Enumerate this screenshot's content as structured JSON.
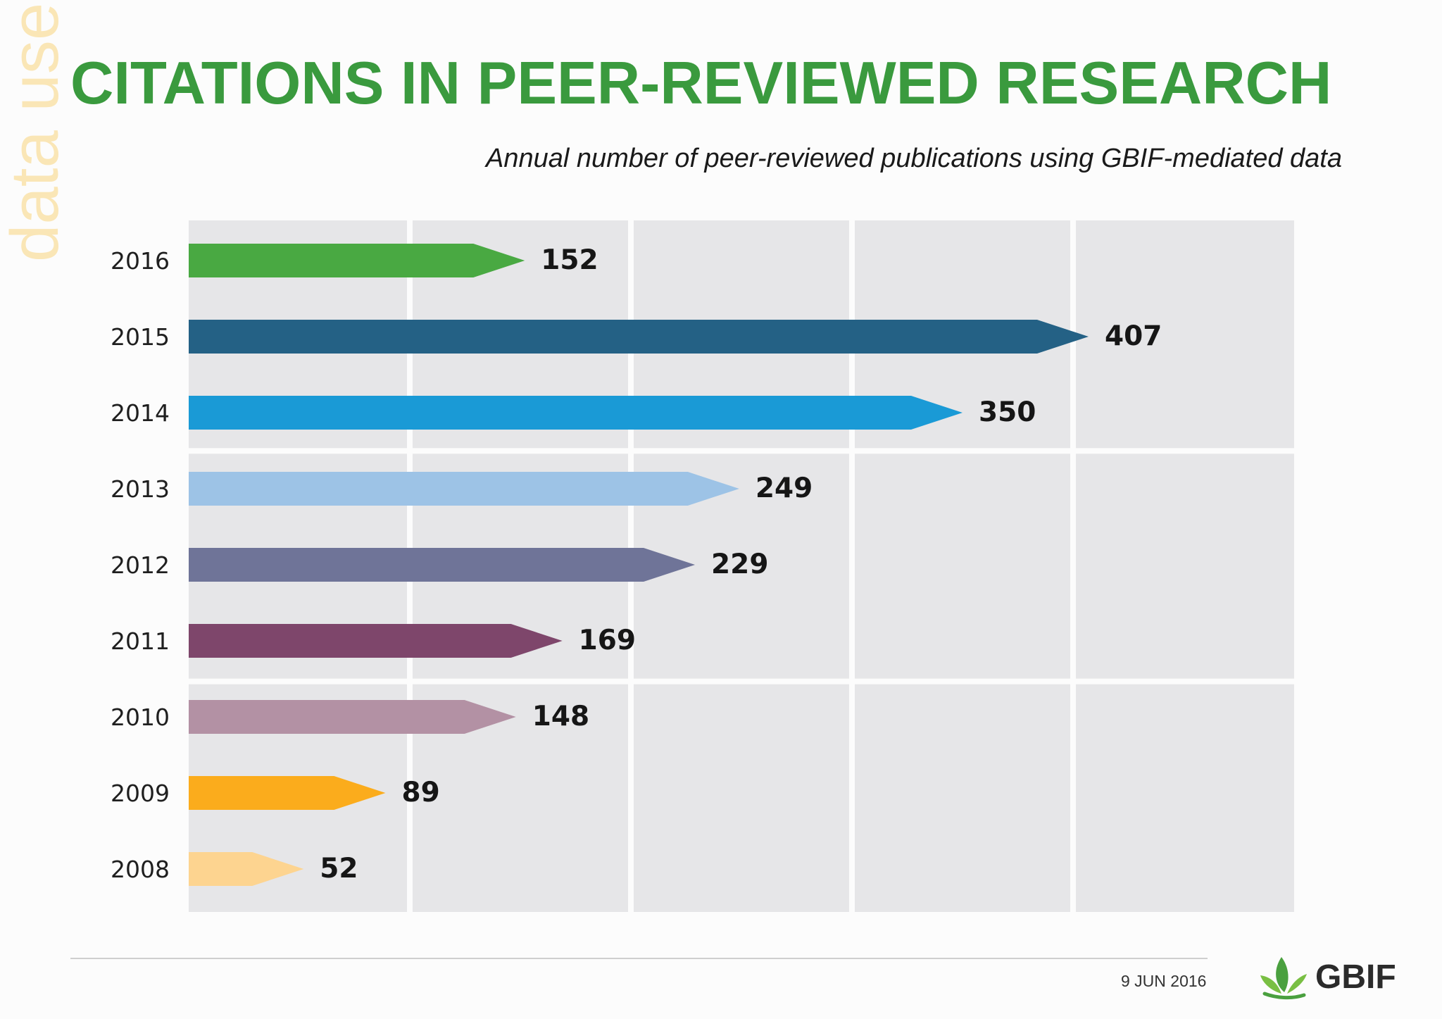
{
  "side_text": "data use",
  "title": "CITATIONS IN PEER-REVIEWED RESEARCH",
  "subtitle": "Annual number of peer-reviewed publications using GBIF-mediated data",
  "footer": {
    "date": "9 JUN 2016",
    "logo_text": "GBIF"
  },
  "colors": {
    "title": "#3a9a3e",
    "grid_cell": "#e6e6e8"
  },
  "chart_data": {
    "type": "bar",
    "orientation": "horizontal",
    "categories": [
      "2016",
      "2015",
      "2014",
      "2013",
      "2012",
      "2011",
      "2010",
      "2009",
      "2008"
    ],
    "values": [
      152,
      407,
      350,
      249,
      229,
      169,
      148,
      89,
      52
    ],
    "colors": [
      "#49a942",
      "#246185",
      "#1a9ad6",
      "#9dc3e6",
      "#6f7498",
      "#7e466b",
      "#b391a4",
      "#fbac1c",
      "#fdd490"
    ],
    "title": "",
    "xlabel": "",
    "ylabel": "",
    "xlim": [
      0,
      500
    ],
    "grid": true,
    "legend": "none"
  }
}
